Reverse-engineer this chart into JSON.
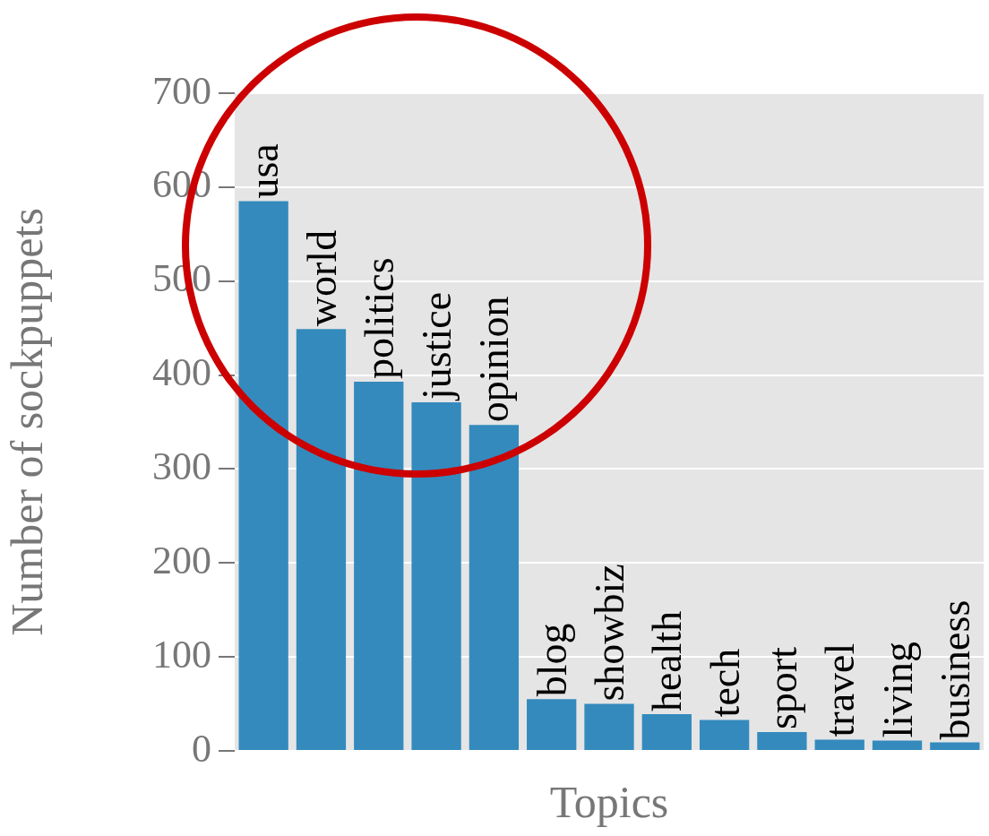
{
  "chart_data": {
    "type": "bar",
    "xlabel": "Topics",
    "ylabel": "Number of sockpuppets",
    "categories": [
      "usa",
      "world",
      "politics",
      "justice",
      "opinion",
      "blog",
      "showbiz",
      "health",
      "tech",
      "sport",
      "travel",
      "living",
      "business"
    ],
    "values": [
      585,
      449,
      393,
      371,
      347,
      55,
      50,
      39,
      33,
      20,
      12,
      11,
      9
    ],
    "color": "#348abd",
    "ylim": [
      0,
      700
    ],
    "yticks": [
      0,
      100,
      200,
      300,
      400,
      500,
      600,
      700
    ],
    "grid": "y",
    "tick_labels": "y"
  }
}
